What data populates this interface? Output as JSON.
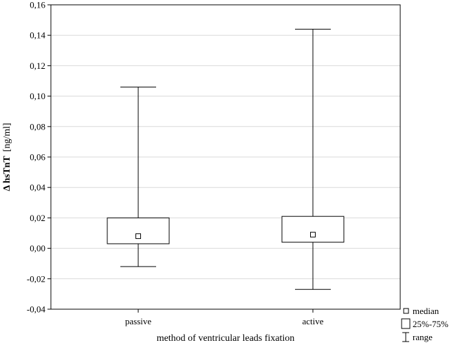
{
  "chart_data": {
    "type": "box",
    "title": "",
    "xlabel": "method of ventricular leads fixation",
    "ylabel": {
      "main": "Δ hsTnT",
      "unit": "[ng/ml]"
    },
    "ylim": [
      -0.04,
      0.16
    ],
    "yticks": [
      "-0,04",
      "-0,02",
      "0,00",
      "0,02",
      "0,04",
      "0,06",
      "0,08",
      "0,10",
      "0,12",
      "0,14",
      "0,16"
    ],
    "ytick_values": [
      -0.04,
      -0.02,
      0.0,
      0.02,
      0.04,
      0.06,
      0.08,
      0.1,
      0.12,
      0.14,
      0.16
    ],
    "grid": "horizontal",
    "categories": [
      "passive",
      "active"
    ],
    "boxes": [
      {
        "category": "passive",
        "min": -0.012,
        "q1": 0.003,
        "median": 0.008,
        "q3": 0.02,
        "max": 0.106
      },
      {
        "category": "active",
        "min": -0.027,
        "q1": 0.004,
        "median": 0.009,
        "q3": 0.021,
        "max": 0.144
      }
    ],
    "legend": {
      "placement": "bottom-right",
      "median": "median",
      "box": "25%-75%",
      "range": "range"
    }
  }
}
